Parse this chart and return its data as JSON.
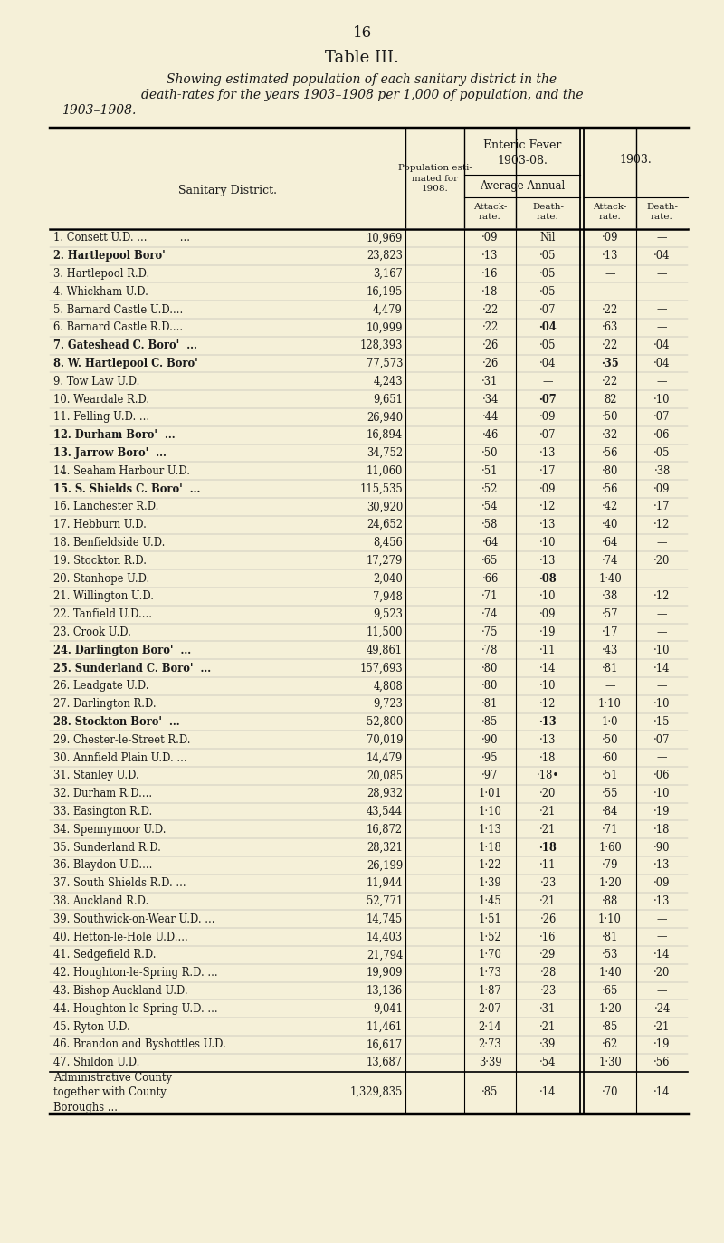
{
  "page_number": "16",
  "title": "Table III.",
  "subtitle_line1": "Showing estimated population of each sanitary district in the",
  "subtitle_line2": "death-rates for the years 1903–1908 per 1,000 of population, and the",
  "subtitle_line3": "1903–1908.",
  "bg_color": "#f5f0d8",
  "rows": [
    [
      "1. Consett U.D. ...          ...",
      "10,969",
      "·09",
      "Nil",
      "·09",
      "—"
    ],
    [
      "2. Hartlepool Boro'          ...",
      "23,823",
      "·13",
      "·05",
      "·13",
      "·04"
    ],
    [
      "3. Hartlepool R.D.           ...",
      "3,167",
      "·16",
      "·05",
      "—",
      "—"
    ],
    [
      "4. Whickham U.D.             ...",
      "16,195",
      "·18",
      "·05",
      "—",
      "—"
    ],
    [
      "5. Barnard Castle U.D....    ...",
      "4,479",
      "·22",
      "·07",
      "·22",
      "—"
    ],
    [
      "6. Barnard Castle R.D....    ...",
      "10,999",
      "·22",
      "·04",
      "·63",
      "—"
    ],
    [
      "7. Gateshead C. Boro'        ...",
      "128,393",
      "·26",
      "·05",
      "·22",
      "·04"
    ],
    [
      "8. W. Hartlepool C. Boro'",
      "77,573",
      "·26",
      "·04",
      "·35",
      "·04"
    ],
    [
      "9. Tow Law U.D.              ...",
      "4,243",
      "·31",
      "—",
      "·22",
      "—"
    ],
    [
      "10. Weardale R.D.            ...",
      "9,651",
      "·34",
      "·07",
      "82",
      "·10"
    ],
    [
      "11. Felling U.D. ...         ...",
      "26,940",
      "·44",
      "·09",
      "·50",
      "·07"
    ],
    [
      "12. Durham Boro'             ...",
      "16,894",
      "·46",
      "·07",
      "·32",
      "·06"
    ],
    [
      "13. Jarrow Boro'             ...",
      "34,752",
      "·50",
      "·13",
      "·56",
      "·05"
    ],
    [
      "14. Seaham Harbour U.D.      ...",
      "11,060",
      "·51",
      "·17",
      "·80",
      "·38"
    ],
    [
      "15. S. Shields C. Boro'      ...",
      "115,535",
      "·52",
      "·09",
      "·56",
      "·09"
    ],
    [
      "16. Lanchester R.D.          ...",
      "30,920",
      "·54",
      "·12",
      "·42",
      "·17"
    ],
    [
      "17. Hebburn U.D.             ...",
      "24,652",
      "·58",
      "·13",
      "·40",
      "·12"
    ],
    [
      "18. Benfieldside U.D.        ...",
      "8,456",
      "·64",
      "·10",
      "·64",
      "—"
    ],
    [
      "19. Stockton R.D.            ...",
      "17,279",
      "·65",
      "·13",
      "·74",
      "·20"
    ],
    [
      "20. Stanhope U.D.            ...",
      "2,040",
      "·66",
      "·08",
      "1·40",
      "—"
    ],
    [
      "21. Willington U.D.          ...",
      "7,948",
      "·71",
      "·10",
      "·38",
      "·12"
    ],
    [
      "22. Tanfield U.D....         ...",
      "9,523",
      "·74",
      "·09",
      "·57",
      "—"
    ],
    [
      "23. Crook U.D.               ...",
      "11,500",
      "·75",
      "·19",
      "·17",
      "—"
    ],
    [
      "24. Darlington Boro'         ...",
      "49,861",
      "·78",
      "·11",
      "·43",
      "·10"
    ],
    [
      "25. Sunderland C. Boro'      ...",
      "157,693",
      "·80",
      "·14",
      "·81",
      "·14"
    ],
    [
      "26. Leadgate U.D.            ...",
      "4,808",
      "·80",
      "·10",
      "—",
      "—"
    ],
    [
      "27. Darlington R.D.          ...",
      "9,723",
      "·81",
      "·12",
      "1·10",
      "·10"
    ],
    [
      "28. Stockton Boro'...        ...",
      "52,800",
      "·85",
      "·13",
      "1·0",
      "·15"
    ],
    [
      "29. Chester-le-Street R.D.",
      "70,019",
      "·90",
      "·13",
      "·50",
      "·07"
    ],
    [
      "30. Annfield Plain U.D. ...",
      "14,479",
      "·95",
      "·18",
      "·60",
      "—"
    ],
    [
      "31. Stanley U.D.             ...",
      "20,085",
      "·97",
      "·18•",
      "·51",
      "·06"
    ],
    [
      "32. Durham R.D....           ...",
      "28,932",
      "1·01",
      "·20",
      "·55",
      "·10"
    ],
    [
      "33. Easington R.D.           ...",
      "43,544",
      "1·10",
      "·21",
      "·84",
      "·19"
    ],
    [
      "34. Spennymoor U.D.          ...",
      "16,872",
      "1·13",
      "·21",
      "·71",
      "·18"
    ],
    [
      "35. Sunderland R.D.          ...",
      "28,321",
      "1·18",
      "·18",
      "1·60",
      "·90"
    ],
    [
      "36. Blaydon U.D....          ...",
      "26,199",
      "1·22",
      "·11",
      "·79",
      "·13"
    ],
    [
      "37. South Shields R.D.       ...",
      "11,944",
      "1·39",
      "·23",
      "1·20",
      "·09"
    ],
    [
      "38. Auckland R.D.            ...",
      "52,771",
      "1·45",
      "·21",
      "·88",
      "·13"
    ],
    [
      "39. Southwick-on-Wear U.D.   ...",
      "14,745",
      "1·51",
      "·26",
      "1·10",
      "—"
    ],
    [
      "40. Hetton-le-Hole U.D....   ...",
      "14,403",
      "1·52",
      "·16",
      "·81",
      "—"
    ],
    [
      "41. Sedgefield R.D.          ...",
      "21,794",
      "1·70",
      "·29",
      "·53",
      "·14"
    ],
    [
      "42. Houghton-le-Spring R.D.  ...",
      "19,909",
      "1·73",
      "·28",
      "1·40",
      "·20"
    ],
    [
      "43. Bishop Auckland U.D.     ...",
      "13,136",
      "1·87",
      "·23",
      "·65",
      "—"
    ],
    [
      "44. Houghton-le-Spring U.D.  ...",
      "9,041",
      "2·07",
      "·31",
      "1·20",
      "·24"
    ],
    [
      "45. Ryton U.D.               ...",
      "11,461",
      "2·14",
      "·21",
      "·85",
      "·21"
    ],
    [
      "46. Brandon and Byshottles U.D.",
      "16,617",
      "2·73",
      "·39",
      "·62",
      "·19"
    ],
    [
      "47. Shildon U.D.             ...",
      "13,687",
      "3·39",
      "·54",
      "1·30",
      "·56"
    ]
  ],
  "rows_display": [
    [
      "1. Consett U.D. ...          ...",
      "10,969",
      "·09",
      "Nil",
      "·09",
      "—"
    ],
    [
      "2. Hartlepool Boro'",
      "23,823",
      "·13",
      "·05",
      "·13",
      "·04"
    ],
    [
      "3. Hartlepool R.D.",
      "3,167",
      "·16",
      "·05",
      "—",
      "—"
    ],
    [
      "4. Whickham U.D.",
      "16,195",
      "·18",
      "·05",
      "—",
      "—"
    ],
    [
      "5. Barnard Castle U.D....",
      "4,479",
      "·22",
      "·07",
      "·22",
      "—"
    ],
    [
      "6. Barnard Castle R.D....",
      "10,999",
      "·22",
      "·04",
      "·63",
      "—"
    ],
    [
      "7. Gateshead C. Boro'  ...",
      "128,393",
      "·26",
      "·05",
      "·22",
      "·04"
    ],
    [
      "8. W. Hartlepool C. Boro'",
      "77,573",
      "·26",
      "·04",
      "·35",
      "·04"
    ],
    [
      "9. Tow Law U.D.",
      "4,243",
      "·31",
      "—",
      "·22",
      "—"
    ],
    [
      "10. Weardale R.D.",
      "9,651",
      "·34",
      "·07",
      "82",
      "·10"
    ],
    [
      "11. Felling U.D. ...",
      "26,940",
      "·44",
      "·09",
      "·50",
      "·07"
    ],
    [
      "12. Durham Boro'  ...",
      "16,894",
      "·46",
      "·07",
      "·32",
      "·06"
    ],
    [
      "13. Jarrow Boro'  ...",
      "34,752",
      "·50",
      "·13",
      "·56",
      "·05"
    ],
    [
      "14. Seaham Harbour U.D.",
      "11,060",
      "·51",
      "·17",
      "·80",
      "·38"
    ],
    [
      "15. S. Shields C. Boro'  ...",
      "115,535",
      "·52",
      "·09",
      "·56",
      "·09"
    ],
    [
      "16. Lanchester R.D.",
      "30,920",
      "·54",
      "·12",
      "·42",
      "·17"
    ],
    [
      "17. Hebburn U.D.",
      "24,652",
      "·58",
      "·13",
      "·40",
      "·12"
    ],
    [
      "18. Benfieldside U.D.",
      "8,456",
      "·64",
      "·10",
      "·64",
      "—"
    ],
    [
      "19. Stockton R.D.",
      "17,279",
      "·65",
      "·13",
      "·74",
      "·20"
    ],
    [
      "20. Stanhope U.D.",
      "2,040",
      "·66",
      "·08",
      "1·40",
      "—"
    ],
    [
      "21. Willington U.D.",
      "7,948",
      "·71",
      "·10",
      "·38",
      "·12"
    ],
    [
      "22. Tanfield U.D....",
      "9,523",
      "·74",
      "·09",
      "·57",
      "—"
    ],
    [
      "23. Crook U.D.",
      "11,500",
      "·75",
      "·19",
      "·17",
      "—"
    ],
    [
      "24. Darlington Boro'  ...",
      "49,861",
      "·78",
      "·11",
      "·43",
      "·10"
    ],
    [
      "25. Sunderland C. Boro'  ...",
      "157,693",
      "·80",
      "·14",
      "·81",
      "·14"
    ],
    [
      "26. Leadgate U.D.",
      "4,808",
      "·80",
      "·10",
      "—",
      "—"
    ],
    [
      "27. Darlington R.D.",
      "9,723",
      "·81",
      "·12",
      "1·10",
      "·10"
    ],
    [
      "28. Stockton Boro'  ...",
      "52,800",
      "·85",
      "·13",
      "1·0",
      "·15"
    ],
    [
      "29. Chester-le-Street R.D.",
      "70,019",
      "·90",
      "·13",
      "·50",
      "·07"
    ],
    [
      "30. Annfield Plain U.D. ...",
      "14,479",
      "·95",
      "·18",
      "·60",
      "—"
    ],
    [
      "31. Stanley U.D.",
      "20,085",
      "·97",
      "·18•",
      "·51",
      "·06"
    ],
    [
      "32. Durham R.D....",
      "28,932",
      "1·01",
      "·20",
      "·55",
      "·10"
    ],
    [
      "33. Easington R.D.",
      "43,544",
      "1·10",
      "·21",
      "·84",
      "·19"
    ],
    [
      "34. Spennymoor U.D.",
      "16,872",
      "1·13",
      "·21",
      "·71",
      "·18"
    ],
    [
      "35. Sunderland R.D.",
      "28,321",
      "1·18",
      "·18",
      "1·60",
      "·90"
    ],
    [
      "36. Blaydon U.D....",
      "26,199",
      "1·22",
      "·11",
      "·79",
      "·13"
    ],
    [
      "37. South Shields R.D. ...",
      "11,944",
      "1·39",
      "·23",
      "1·20",
      "·09"
    ],
    [
      "38. Auckland R.D.",
      "52,771",
      "1·45",
      "·21",
      "·88",
      "·13"
    ],
    [
      "39. Southwick-on-Wear U.D. ...",
      "14,745",
      "1·51",
      "·26",
      "1·10",
      "—"
    ],
    [
      "40. Hetton-le-Hole U.D....",
      "14,403",
      "1·52",
      "·16",
      "·81",
      "—"
    ],
    [
      "41. Sedgefield R.D.",
      "21,794",
      "1·70",
      "·29",
      "·53",
      "·14"
    ],
    [
      "42. Houghton-le-Spring R.D. ...",
      "19,909",
      "1·73",
      "·28",
      "1·40",
      "·20"
    ],
    [
      "43. Bishop Auckland U.D.",
      "13,136",
      "1·87",
      "·23",
      "·65",
      "—"
    ],
    [
      "44. Houghton-le-Spring U.D. ...",
      "9,041",
      "2·07",
      "·31",
      "1·20",
      "·24"
    ],
    [
      "45. Ryton U.D.",
      "11,461",
      "2·14",
      "·21",
      "·85",
      "·21"
    ],
    [
      "46. Brandon and Byshottles U.D.",
      "16,617",
      "2·73",
      "·39",
      "·62",
      "·19"
    ],
    [
      "47. Shildon U.D.",
      "13,687",
      "3·39",
      "·54",
      "1·30",
      "·56"
    ]
  ],
  "bold_name_rows": [
    1,
    6,
    7,
    11,
    12,
    14,
    23,
    24,
    27
  ],
  "bold_value_cells": {
    "5": [
      3
    ],
    "7": [
      4
    ],
    "9": [
      3
    ],
    "19": [
      3
    ],
    "27": [
      3
    ],
    "34": [
      3
    ]
  },
  "footer_row": [
    "Administrative County\ntogether with County\nBoroughs ...",
    "1,329,835",
    "·85",
    "·14",
    "·70",
    "·14"
  ]
}
